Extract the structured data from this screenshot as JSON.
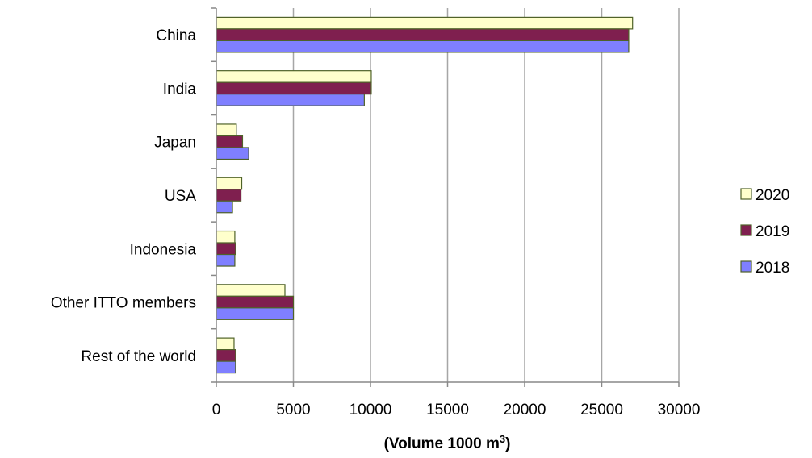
{
  "chart_data": {
    "type": "bar",
    "orientation": "horizontal",
    "categories": [
      "China",
      "India",
      "Japan",
      "USA",
      "Indonesia",
      "Other ITTO members",
      "Rest of the world"
    ],
    "series": [
      {
        "name": "2020",
        "color": "#FFFFCC",
        "values": [
          27000,
          10050,
          1300,
          1650,
          1200,
          4450,
          1150
        ]
      },
      {
        "name": "2019",
        "color": "#7F1F4F",
        "values": [
          26750,
          10050,
          1700,
          1600,
          1250,
          5000,
          1250
        ]
      },
      {
        "name": "2018",
        "color": "#7F7FFF",
        "values": [
          26750,
          9600,
          2100,
          1050,
          1200,
          5000,
          1250
        ]
      }
    ],
    "xlabel": "(Volume 1000 m",
    "xlabel_superscript": "3",
    "xlabel_suffix": ")",
    "xlim": [
      0,
      30000
    ],
    "xticks": [
      0,
      5000,
      10000,
      15000,
      20000,
      25000,
      30000
    ],
    "grid": "vertical",
    "legend": "right",
    "legend_order": [
      "2020",
      "2019",
      "2018"
    ],
    "bar_border_color": "#4F6228",
    "grid_color": "#A6A6A6",
    "axis_color": "#888888"
  }
}
